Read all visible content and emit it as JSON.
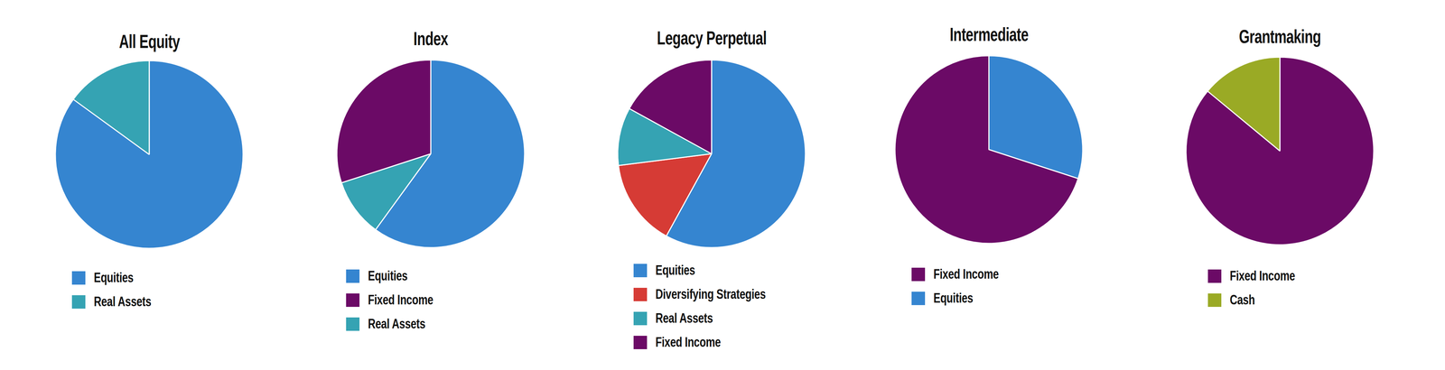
{
  "chart_data": [
    {
      "type": "pie",
      "title": "All Equity",
      "categories": [
        "Equities",
        "Real Assets"
      ],
      "values": [
        85,
        15
      ],
      "colors": [
        "#3585d0",
        "#35a3b3"
      ],
      "legend": "bottom"
    },
    {
      "type": "pie",
      "title": "Index",
      "categories": [
        "Equities",
        "Fixed Income",
        "Real Assets"
      ],
      "values": [
        60,
        30,
        10
      ],
      "colors": [
        "#3585d0",
        "#6b0a66",
        "#35a3b3"
      ],
      "legend": "bottom"
    },
    {
      "type": "pie",
      "title": "Legacy Perpetual",
      "categories": [
        "Equities",
        "Diversifying Strategies",
        "Real Assets",
        "Fixed Income"
      ],
      "values": [
        58,
        15,
        10,
        17
      ],
      "colors": [
        "#3585d0",
        "#d63b35",
        "#35a3b3",
        "#6b0a66"
      ],
      "legend": "bottom"
    },
    {
      "type": "pie",
      "title": "Intermediate",
      "categories": [
        "Fixed Income",
        "Equities"
      ],
      "values": [
        70,
        30
      ],
      "colors": [
        "#6b0a66",
        "#3585d0"
      ],
      "legend": "bottom"
    },
    {
      "type": "pie",
      "title": "Grantmaking",
      "categories": [
        "Fixed Income",
        "Cash"
      ],
      "values": [
        86,
        14
      ],
      "colors": [
        "#6b0a66",
        "#9aaa25"
      ],
      "legend": "bottom"
    }
  ]
}
